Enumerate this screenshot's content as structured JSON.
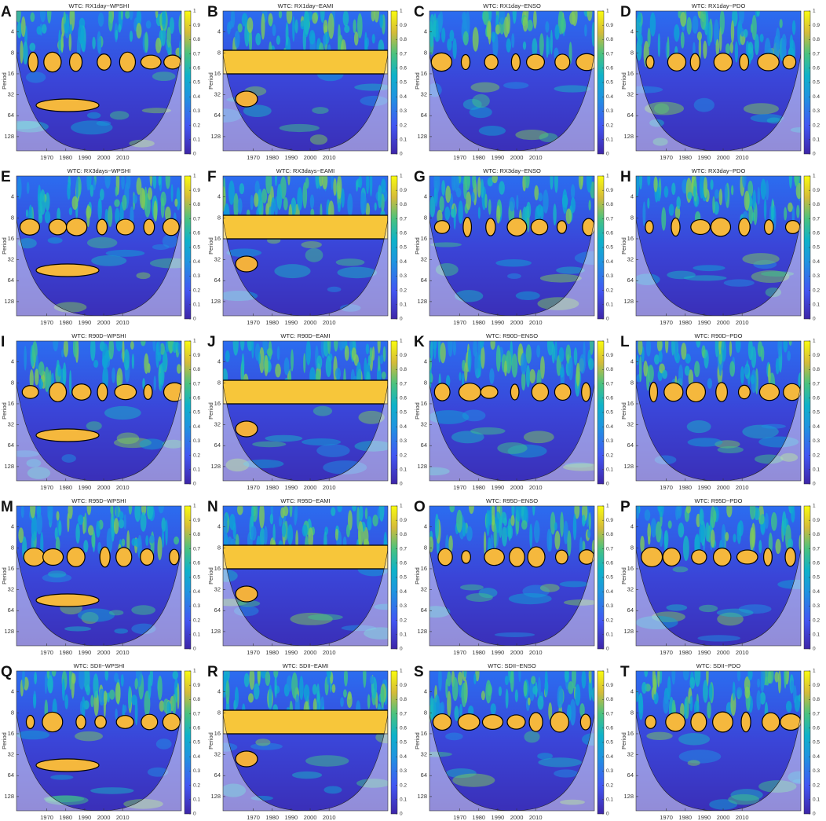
{
  "chart_data": [
    {
      "type": "wavelet",
      "panel_label": "A",
      "title": "WTC: RX1day~WPSHI",
      "ylabel": "Period",
      "xlim": [
        1954,
        2041
      ],
      "xticks": [
        1970,
        1980,
        1990,
        2000,
        2010
      ],
      "ylim": [
        2,
        205
      ],
      "yticks": [
        4,
        8,
        16,
        32,
        64,
        128
      ],
      "log_y": true,
      "y_reversed": true,
      "clim": [
        0,
        1
      ],
      "cticks": [
        0,
        0.1,
        0.2,
        0.3,
        0.4,
        0.5,
        0.6,
        0.7,
        0.8,
        0.9,
        1
      ]
    },
    {
      "type": "wavelet",
      "panel_label": "B",
      "title": "WTC: RX1day~EAMI",
      "ylabel": "Period",
      "xlim": [
        1954,
        2041
      ],
      "xticks": [
        1970,
        1980,
        1990,
        2000,
        2010
      ],
      "ylim": [
        2,
        205
      ],
      "yticks": [
        4,
        8,
        16,
        32,
        64,
        128
      ],
      "log_y": true,
      "y_reversed": true,
      "clim": [
        0,
        1
      ],
      "cticks": [
        0,
        0.1,
        0.2,
        0.3,
        0.4,
        0.5,
        0.6,
        0.7,
        0.8,
        0.9,
        1
      ]
    },
    {
      "type": "wavelet",
      "panel_label": "C",
      "title": "WTC: RX1day~ENSO",
      "ylabel": "Period",
      "xlim": [
        1954,
        2041
      ],
      "xticks": [
        1970,
        1980,
        1990,
        2000,
        2010
      ],
      "ylim": [
        2,
        205
      ],
      "yticks": [
        4,
        8,
        16,
        32,
        64,
        128
      ],
      "log_y": true,
      "y_reversed": true,
      "clim": [
        0,
        1
      ],
      "cticks": [
        0,
        0.1,
        0.2,
        0.3,
        0.4,
        0.5,
        0.6,
        0.7,
        0.8,
        0.9,
        1
      ]
    },
    {
      "type": "wavelet",
      "panel_label": "D",
      "title": "WTC: RX1day~PDO",
      "ylabel": "Period",
      "xlim": [
        1954,
        2041
      ],
      "xticks": [
        1970,
        1980,
        1990,
        2000,
        2010
      ],
      "ylim": [
        2,
        205
      ],
      "yticks": [
        4,
        8,
        16,
        32,
        64,
        128
      ],
      "log_y": true,
      "y_reversed": true,
      "clim": [
        0,
        1
      ],
      "cticks": [
        0,
        0.1,
        0.2,
        0.3,
        0.4,
        0.5,
        0.6,
        0.7,
        0.8,
        0.9,
        1
      ]
    },
    {
      "type": "wavelet",
      "panel_label": "E",
      "title": "WTC: RX3days~WPSHI",
      "ylabel": "Period",
      "xlim": [
        1954,
        2041
      ],
      "xticks": [
        1970,
        1980,
        1990,
        2000,
        2010
      ],
      "ylim": [
        2,
        205
      ],
      "yticks": [
        4,
        8,
        16,
        32,
        64,
        128
      ],
      "log_y": true,
      "y_reversed": true,
      "clim": [
        0,
        1
      ],
      "cticks": [
        0,
        0.1,
        0.2,
        0.3,
        0.4,
        0.5,
        0.6,
        0.7,
        0.8,
        0.9,
        1
      ]
    },
    {
      "type": "wavelet",
      "panel_label": "F",
      "title": "WTC: RX3days~EAMI",
      "ylabel": "Period",
      "xlim": [
        1954,
        2041
      ],
      "xticks": [
        1970,
        1980,
        1990,
        2000,
        2010
      ],
      "ylim": [
        2,
        205
      ],
      "yticks": [
        4,
        8,
        16,
        32,
        64,
        128
      ],
      "log_y": true,
      "y_reversed": true,
      "clim": [
        0,
        1
      ],
      "cticks": [
        0,
        0.1,
        0.2,
        0.3,
        0.4,
        0.5,
        0.6,
        0.7,
        0.8,
        0.9,
        1
      ]
    },
    {
      "type": "wavelet",
      "panel_label": "G",
      "title": "WTC: RX3day~ENSO",
      "ylabel": "Period",
      "xlim": [
        1954,
        2041
      ],
      "xticks": [
        1970,
        1980,
        1990,
        2000,
        2010
      ],
      "ylim": [
        2,
        205
      ],
      "yticks": [
        4,
        8,
        16,
        32,
        64,
        128
      ],
      "log_y": true,
      "y_reversed": true,
      "clim": [
        0,
        1
      ],
      "cticks": [
        0,
        0.1,
        0.2,
        0.3,
        0.4,
        0.5,
        0.6,
        0.7,
        0.8,
        0.9,
        1
      ]
    },
    {
      "type": "wavelet",
      "panel_label": "H",
      "title": "WTC: RX3day~PDO",
      "ylabel": "Period",
      "xlim": [
        1954,
        2041
      ],
      "xticks": [
        1970,
        1980,
        1990,
        2000,
        2010
      ],
      "ylim": [
        2,
        205
      ],
      "yticks": [
        4,
        8,
        16,
        32,
        64,
        128
      ],
      "log_y": true,
      "y_reversed": true,
      "clim": [
        0,
        1
      ],
      "cticks": [
        0,
        0.1,
        0.2,
        0.3,
        0.4,
        0.5,
        0.6,
        0.7,
        0.8,
        0.9,
        1
      ]
    },
    {
      "type": "wavelet",
      "panel_label": "I",
      "title": "WTC: R90D~WPSHI",
      "ylabel": "Period",
      "xlim": [
        1954,
        2041
      ],
      "xticks": [
        1970,
        1980,
        1990,
        2000,
        2010
      ],
      "ylim": [
        2,
        205
      ],
      "yticks": [
        4,
        8,
        16,
        32,
        64,
        128
      ],
      "log_y": true,
      "y_reversed": true,
      "clim": [
        0,
        1
      ],
      "cticks": [
        0,
        0.1,
        0.2,
        0.3,
        0.4,
        0.5,
        0.6,
        0.7,
        0.8,
        0.9,
        1
      ]
    },
    {
      "type": "wavelet",
      "panel_label": "J",
      "title": "WTC: R90D~EAMI",
      "ylabel": "Period",
      "xlim": [
        1954,
        2041
      ],
      "xticks": [
        1970,
        1980,
        1990,
        2000,
        2010
      ],
      "ylim": [
        2,
        205
      ],
      "yticks": [
        4,
        8,
        16,
        32,
        64,
        128
      ],
      "log_y": true,
      "y_reversed": true,
      "clim": [
        0,
        1
      ],
      "cticks": [
        0,
        0.1,
        0.2,
        0.3,
        0.4,
        0.5,
        0.6,
        0.7,
        0.8,
        0.9,
        1
      ]
    },
    {
      "type": "wavelet",
      "panel_label": "K",
      "title": "WTC: R90D~ENSO",
      "ylabel": "Period",
      "xlim": [
        1954,
        2041
      ],
      "xticks": [
        1970,
        1980,
        1990,
        2000,
        2010
      ],
      "ylim": [
        2,
        205
      ],
      "yticks": [
        4,
        8,
        16,
        32,
        64,
        128
      ],
      "log_y": true,
      "y_reversed": true,
      "clim": [
        0,
        1
      ],
      "cticks": [
        0,
        0.1,
        0.2,
        0.3,
        0.4,
        0.5,
        0.6,
        0.7,
        0.8,
        0.9,
        1
      ]
    },
    {
      "type": "wavelet",
      "panel_label": "L",
      "title": "WTC: R90D~PDO",
      "ylabel": "Period",
      "xlim": [
        1954,
        2041
      ],
      "xticks": [
        1970,
        1980,
        1990,
        2000,
        2010
      ],
      "ylim": [
        2,
        205
      ],
      "yticks": [
        4,
        8,
        16,
        32,
        64,
        128
      ],
      "log_y": true,
      "y_reversed": true,
      "clim": [
        0,
        1
      ],
      "cticks": [
        0,
        0.1,
        0.2,
        0.3,
        0.4,
        0.5,
        0.6,
        0.7,
        0.8,
        0.9,
        1
      ]
    },
    {
      "type": "wavelet",
      "panel_label": "M",
      "title": "WTC: R95D~WPSHI",
      "ylabel": "Period",
      "xlim": [
        1954,
        2041
      ],
      "xticks": [
        1970,
        1980,
        1990,
        2000,
        2010
      ],
      "ylim": [
        2,
        205
      ],
      "yticks": [
        4,
        8,
        16,
        32,
        64,
        128
      ],
      "log_y": true,
      "y_reversed": true,
      "clim": [
        0,
        1
      ],
      "cticks": [
        0,
        0.1,
        0.2,
        0.3,
        0.4,
        0.5,
        0.6,
        0.7,
        0.8,
        0.9,
        1
      ]
    },
    {
      "type": "wavelet",
      "panel_label": "N",
      "title": "WTC: R95D~EAMI",
      "ylabel": "Period",
      "xlim": [
        1954,
        2041
      ],
      "xticks": [
        1970,
        1980,
        1990,
        2000,
        2010
      ],
      "ylim": [
        2,
        205
      ],
      "yticks": [
        4,
        8,
        16,
        32,
        64,
        128
      ],
      "log_y": true,
      "y_reversed": true,
      "clim": [
        0,
        1
      ],
      "cticks": [
        0,
        0.1,
        0.2,
        0.3,
        0.4,
        0.5,
        0.6,
        0.7,
        0.8,
        0.9,
        1
      ]
    },
    {
      "type": "wavelet",
      "panel_label": "O",
      "title": "WTC: R95D~ENSO",
      "ylabel": "Period",
      "xlim": [
        1954,
        2041
      ],
      "xticks": [
        1970,
        1980,
        1990,
        2000,
        2010
      ],
      "ylim": [
        2,
        205
      ],
      "yticks": [
        4,
        8,
        16,
        32,
        64,
        128
      ],
      "log_y": true,
      "y_reversed": true,
      "clim": [
        0,
        1
      ],
      "cticks": [
        0,
        0.1,
        0.2,
        0.3,
        0.4,
        0.5,
        0.6,
        0.7,
        0.8,
        0.9,
        1
      ]
    },
    {
      "type": "wavelet",
      "panel_label": "P",
      "title": "WTC: R95D~PDO",
      "ylabel": "Period",
      "xlim": [
        1954,
        2041
      ],
      "xticks": [
        1970,
        1980,
        1990,
        2000,
        2010
      ],
      "ylim": [
        2,
        205
      ],
      "yticks": [
        4,
        8,
        16,
        32,
        64,
        128
      ],
      "log_y": true,
      "y_reversed": true,
      "clim": [
        0,
        1
      ],
      "cticks": [
        0,
        0.1,
        0.2,
        0.3,
        0.4,
        0.5,
        0.6,
        0.7,
        0.8,
        0.9,
        1
      ]
    },
    {
      "type": "wavelet",
      "panel_label": "Q",
      "title": "WTC: SDII~WPSHI",
      "ylabel": "Period",
      "xlim": [
        1954,
        2041
      ],
      "xticks": [
        1970,
        1980,
        1990,
        2000,
        2010
      ],
      "ylim": [
        2,
        205
      ],
      "yticks": [
        4,
        8,
        16,
        32,
        64,
        128
      ],
      "log_y": true,
      "y_reversed": true,
      "clim": [
        0,
        1
      ],
      "cticks": [
        0,
        0.1,
        0.2,
        0.3,
        0.4,
        0.5,
        0.6,
        0.7,
        0.8,
        0.9,
        1
      ]
    },
    {
      "type": "wavelet",
      "panel_label": "R",
      "title": "WTC: SDII~EAMI",
      "ylabel": "Period",
      "xlim": [
        1954,
        2041
      ],
      "xticks": [
        1970,
        1980,
        1990,
        2000,
        2010
      ],
      "ylim": [
        2,
        205
      ],
      "yticks": [
        4,
        8,
        16,
        32,
        64,
        128
      ],
      "log_y": true,
      "y_reversed": true,
      "clim": [
        0,
        1
      ],
      "cticks": [
        0,
        0.1,
        0.2,
        0.3,
        0.4,
        0.5,
        0.6,
        0.7,
        0.8,
        0.9,
        1
      ]
    },
    {
      "type": "wavelet",
      "panel_label": "S",
      "title": "WTC: SDII~ENSO",
      "ylabel": "Period",
      "xlim": [
        1954,
        2041
      ],
      "xticks": [
        1970,
        1980,
        1990,
        2000,
        2010
      ],
      "ylim": [
        2,
        205
      ],
      "yticks": [
        4,
        8,
        16,
        32,
        64,
        128
      ],
      "log_y": true,
      "y_reversed": true,
      "clim": [
        0,
        1
      ],
      "cticks": [
        0,
        0.1,
        0.2,
        0.3,
        0.4,
        0.5,
        0.6,
        0.7,
        0.8,
        0.9,
        1
      ]
    },
    {
      "type": "wavelet",
      "panel_label": "T",
      "title": "WTC: SDII~PDO",
      "ylabel": "Period",
      "xlim": [
        1954,
        2041
      ],
      "xticks": [
        1970,
        1980,
        1990,
        2000,
        2010
      ],
      "ylim": [
        2,
        205
      ],
      "yticks": [
        4,
        8,
        16,
        32,
        64,
        128
      ],
      "log_y": true,
      "y_reversed": true,
      "clim": [
        0,
        1
      ],
      "cticks": [
        0,
        0.1,
        0.2,
        0.3,
        0.4,
        0.5,
        0.6,
        0.7,
        0.8,
        0.9,
        1
      ]
    }
  ]
}
